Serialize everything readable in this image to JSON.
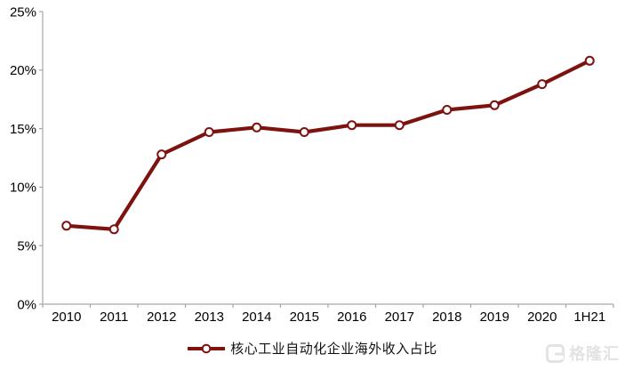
{
  "chart_data": {
    "type": "line",
    "categories": [
      "2010",
      "2011",
      "2012",
      "2013",
      "2014",
      "2015",
      "2016",
      "2017",
      "2018",
      "2019",
      "2020",
      "1H21"
    ],
    "series": [
      {
        "name": "核心工业自动化企业海外收入占比",
        "values": [
          6.7,
          6.4,
          12.8,
          14.7,
          15.1,
          14.7,
          15.3,
          15.3,
          16.6,
          17.0,
          18.8,
          20.8
        ]
      }
    ],
    "title": "",
    "xlabel": "",
    "ylabel": "",
    "ylim": [
      0,
      25
    ],
    "ytick_step": 5,
    "ytick_labels": [
      "0%",
      "5%",
      "10%",
      "15%",
      "20%",
      "25%"
    ],
    "grid": false,
    "legend_position": "bottom",
    "marker": "open-circle"
  },
  "legend": {
    "label": "核心工业自动化企业海外收入占比"
  },
  "watermark": {
    "text": "格隆汇"
  },
  "colors": {
    "line": "#7E120E",
    "marker_fill": "#ffffff",
    "axis": "#A6A6A6",
    "label": "#000000",
    "watermark": "#E3E3E3"
  }
}
